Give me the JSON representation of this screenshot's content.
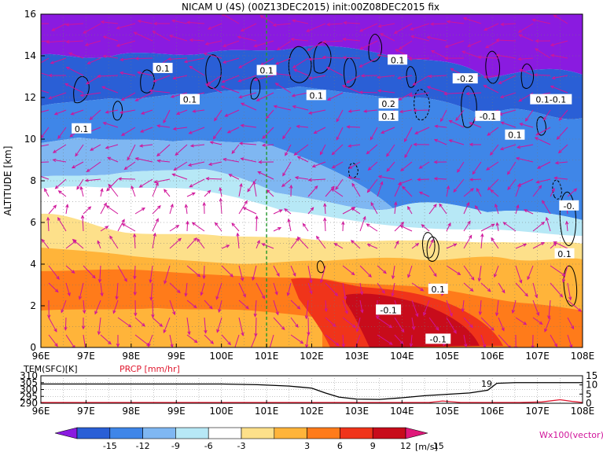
{
  "chart_data": [
    {
      "type": "heatmap",
      "title": "NICAM U (4S) (00Z13DEC2015) init:00Z08DEC2015 fix",
      "xlabel": "",
      "ylabel": "ALTITUDE [km]",
      "x_ticks": [
        "96E",
        "97E",
        "98E",
        "99E",
        "100E",
        "101E",
        "102E",
        "103E",
        "104E",
        "105E",
        "106E",
        "107E",
        "108E"
      ],
      "xlim": [
        96,
        108
      ],
      "y_ticks": [
        "0",
        "2",
        "4",
        "6",
        "8",
        "10",
        "12",
        "14",
        "16"
      ],
      "ylim": [
        0,
        16
      ],
      "marker_line_lon": 101,
      "contour_labels": [
        {
          "text": "0.1",
          "lon": 98.7,
          "alt": 13.4
        },
        {
          "text": "0.1",
          "lon": 99.3,
          "alt": 11.9
        },
        {
          "text": "0.1",
          "lon": 96.9,
          "alt": 10.5
        },
        {
          "text": "0.1",
          "lon": 101.0,
          "alt": 13.3
        },
        {
          "text": "0.1",
          "lon": 102.1,
          "alt": 12.1
        },
        {
          "text": "0.2",
          "lon": 103.7,
          "alt": 11.7
        },
        {
          "text": "0.1",
          "lon": 103.7,
          "alt": 11.1
        },
        {
          "text": "0.1",
          "lon": 103.9,
          "alt": 13.8
        },
        {
          "text": "-0.2",
          "lon": 105.4,
          "alt": 12.9
        },
        {
          "text": "-0.1",
          "lon": 105.9,
          "alt": 11.1
        },
        {
          "text": "0.1",
          "lon": 106.5,
          "alt": 10.2
        },
        {
          "text": "0.1-0.1",
          "lon": 107.3,
          "alt": 11.9
        },
        {
          "text": "-0.1",
          "lon": 103.7,
          "alt": 1.8
        },
        {
          "text": "0.1",
          "lon": 104.8,
          "alt": 2.8
        },
        {
          "text": "-0.1",
          "lon": 104.8,
          "alt": 0.4
        },
        {
          "text": "-0.",
          "lon": 107.7,
          "alt": 6.8
        },
        {
          "text": "0.1",
          "lon": 107.6,
          "alt": 4.5
        }
      ]
    },
    {
      "type": "line",
      "x_ticks": [
        "96E",
        "97E",
        "98E",
        "99E",
        "100E",
        "101E",
        "102E",
        "103E",
        "104E",
        "105E",
        "106E",
        "107E",
        "108E"
      ],
      "xlim": [
        96,
        108
      ],
      "left_axis": {
        "label": "TEM(SFC)[K]",
        "ticks": [
          "290",
          "295",
          "300",
          "305",
          "310"
        ],
        "range": [
          290,
          310
        ]
      },
      "right_axis": {
        "ticks": [
          "0",
          "5",
          "10",
          "15"
        ],
        "range": [
          0,
          15
        ]
      },
      "inline_label": "19",
      "series": [
        {
          "name": "TEM(SFC)[K]",
          "x": [
            96,
            97,
            98,
            99,
            100,
            100.8,
            101.5,
            102,
            102.3,
            102.6,
            103,
            103.5,
            104,
            104.5,
            105,
            105.5,
            105.9,
            106.1,
            106.5,
            107,
            107.5,
            108
          ],
          "values": [
            304,
            304,
            304,
            304,
            304,
            303.5,
            302.5,
            301,
            297.5,
            294.5,
            293,
            292.8,
            294,
            295.5,
            296.5,
            297.5,
            299.5,
            304.5,
            305,
            305,
            305,
            305
          ]
        },
        {
          "name": "PRCP [mm/hr]",
          "x": [
            96,
            100,
            103,
            104,
            104.6,
            104.9,
            105.3,
            106,
            106.6,
            107.1,
            107.5,
            107.8,
            108
          ],
          "values": [
            0,
            0,
            0,
            0,
            0,
            0.8,
            0,
            0,
            0,
            0.3,
            1.5,
            0.5,
            0
          ]
        }
      ]
    }
  ],
  "colorbar": {
    "ticks": [
      "-15",
      "-12",
      "-9",
      "-6",
      "-3",
      "3",
      "6",
      "9",
      "12",
      "15"
    ],
    "unit": "[m/s]",
    "colors": [
      "#8a1be0",
      "#2a5fd6",
      "#3f86e8",
      "#7fb7f2",
      "#b7e8f6",
      "#ffffff",
      "#fde08a",
      "#ffb43a",
      "#ff7b1a",
      "#f0341a",
      "#c80c1b",
      "#e0187a"
    ]
  },
  "vector_label": "Wx100(vector)",
  "colors": {
    "vector": "#d0149a",
    "marker": "#1c9b24",
    "prcp": "#e0182f"
  }
}
